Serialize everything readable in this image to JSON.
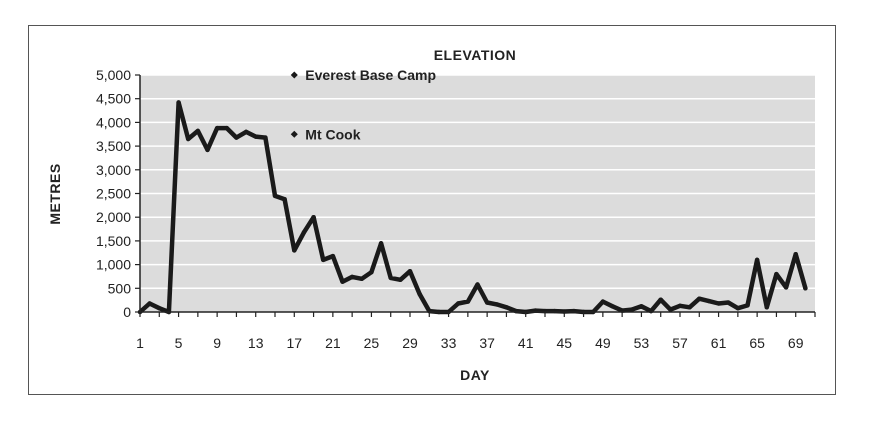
{
  "chart_data": {
    "type": "line",
    "title": "ELEVATION",
    "xlabel": "DAY",
    "ylabel": "METRES",
    "ylim": [
      0,
      5000
    ],
    "xlim": [
      1,
      71
    ],
    "y_ticks": [
      0,
      500,
      1000,
      1500,
      2000,
      2500,
      3000,
      3500,
      4000,
      4500,
      5000
    ],
    "y_tick_labels": [
      "0",
      "500",
      "1,000",
      "1,500",
      "2,000",
      "2,500",
      "3,000",
      "3,500",
      "4,000",
      "4,500",
      "5,000"
    ],
    "x_ticks": [
      1,
      5,
      9,
      13,
      17,
      21,
      25,
      29,
      33,
      37,
      41,
      45,
      49,
      53,
      57,
      61,
      65,
      69
    ],
    "x_tick_labels": [
      "1",
      "5",
      "9",
      "13",
      "17",
      "21",
      "25",
      "29",
      "33",
      "37",
      "41",
      "45",
      "49",
      "53",
      "57",
      "61",
      "65",
      "69"
    ],
    "grid": "horizontal",
    "colors": {
      "plot_background": "#dcdcdc",
      "grid": "#ffffff",
      "line": "#1a1a1a",
      "axis": "#222222"
    },
    "annotations": [
      {
        "text": "Everest Base Camp",
        "day": 17,
        "elevation": 5000
      },
      {
        "text": "Mt Cook",
        "day": 17,
        "elevation": 3750
      }
    ],
    "series": [
      {
        "name": "Elevation",
        "x": [
          1,
          2,
          3,
          4,
          5,
          6,
          7,
          8,
          9,
          10,
          11,
          12,
          13,
          14,
          15,
          16,
          17,
          18,
          19,
          20,
          21,
          22,
          23,
          24,
          25,
          26,
          27,
          28,
          29,
          30,
          31,
          32,
          33,
          34,
          35,
          36,
          37,
          38,
          39,
          40,
          41,
          42,
          43,
          44,
          45,
          46,
          47,
          48,
          49,
          50,
          51,
          52,
          53,
          54,
          55,
          56,
          57,
          58,
          59,
          60,
          61,
          62,
          63,
          64,
          65,
          66,
          67,
          68,
          69,
          70
        ],
        "values": [
          0,
          180,
          80,
          0,
          4420,
          3650,
          3820,
          3420,
          3880,
          3880,
          3680,
          3800,
          3700,
          3680,
          2450,
          2380,
          1300,
          1680,
          2000,
          1100,
          1180,
          640,
          740,
          700,
          840,
          1450,
          720,
          680,
          860,
          380,
          20,
          0,
          0,
          180,
          220,
          580,
          200,
          160,
          100,
          20,
          0,
          30,
          20,
          20,
          10,
          20,
          0,
          0,
          220,
          120,
          30,
          50,
          120,
          20,
          260,
          50,
          130,
          100,
          280,
          230,
          180,
          200,
          80,
          140,
          1100,
          100,
          800,
          520,
          1220,
          500
        ]
      }
    ]
  }
}
